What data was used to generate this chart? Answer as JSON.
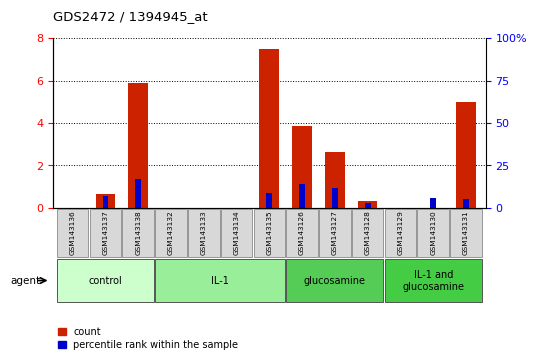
{
  "title": "GDS2472 / 1394945_at",
  "samples": [
    "GSM143136",
    "GSM143137",
    "GSM143138",
    "GSM143132",
    "GSM143133",
    "GSM143134",
    "GSM143135",
    "GSM143126",
    "GSM143127",
    "GSM143128",
    "GSM143129",
    "GSM143130",
    "GSM143131"
  ],
  "count_values": [
    0.0,
    0.65,
    5.9,
    0.0,
    0.0,
    0.0,
    7.5,
    3.85,
    2.65,
    0.35,
    0.0,
    0.0,
    5.0
  ],
  "percentile_values": [
    0.0,
    7.0,
    17.0,
    0.0,
    0.0,
    0.0,
    9.0,
    14.0,
    12.0,
    3.0,
    0.0,
    6.0,
    5.0
  ],
  "groups": [
    {
      "label": "control",
      "start": 0,
      "end": 3,
      "color": "#ccffcc"
    },
    {
      "label": "IL-1",
      "start": 3,
      "end": 7,
      "color": "#99ee99"
    },
    {
      "label": "glucosamine",
      "start": 7,
      "end": 10,
      "color": "#55cc55"
    },
    {
      "label": "IL-1 and\nglucosamine",
      "start": 10,
      "end": 13,
      "color": "#44cc44"
    }
  ],
  "bar_color_red": "#cc2200",
  "bar_color_blue": "#0000cc",
  "left_ylim": [
    0,
    8
  ],
  "right_ylim": [
    0,
    100
  ],
  "left_yticks": [
    0,
    2,
    4,
    6,
    8
  ],
  "right_yticks": [
    0,
    25,
    50,
    75,
    100
  ],
  "right_yticklabels": [
    "0",
    "25",
    "50",
    "75",
    "100%"
  ],
  "legend_count": "count",
  "legend_percentile": "percentile rank within the sample"
}
